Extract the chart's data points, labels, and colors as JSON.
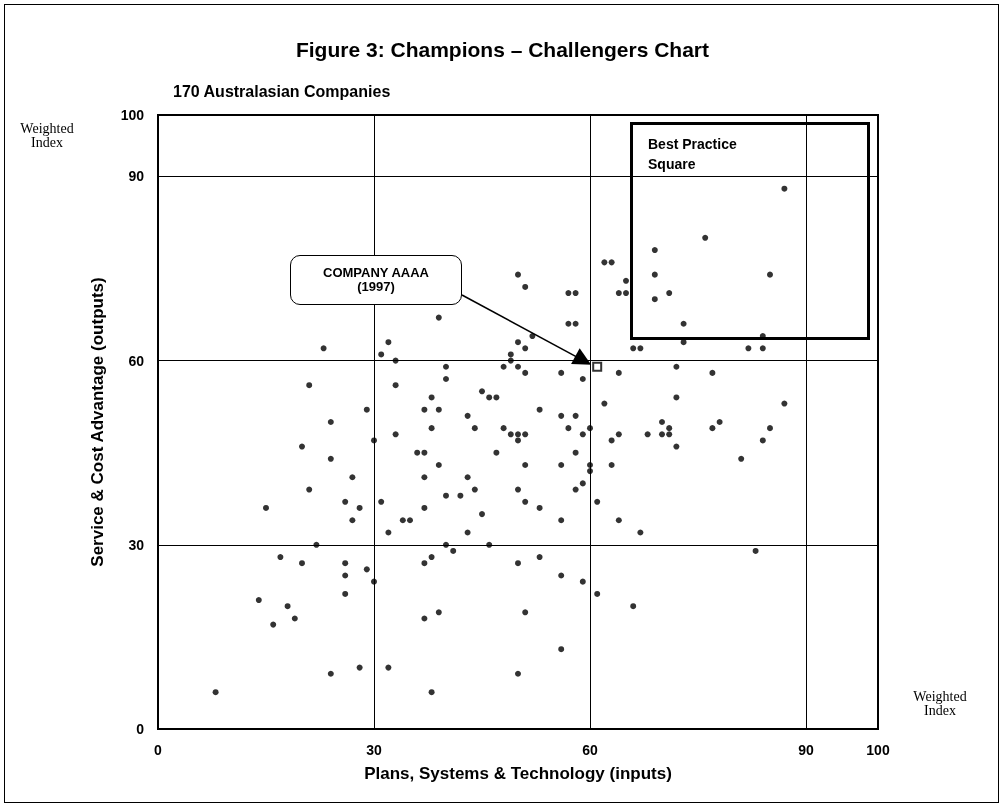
{
  "chart_data": {
    "type": "scatter",
    "title": "Figure 3: Champions – Challengers Chart",
    "subtitle": "170 Australasian Companies",
    "xlabel": "Plans, Systems & Technology (inputs)",
    "ylabel": "Service & Cost Advantage (outputs)",
    "xlim": [
      0,
      100
    ],
    "ylim": [
      0,
      100
    ],
    "xticks": [
      0,
      30,
      60,
      90,
      100
    ],
    "yticks": [
      0,
      30,
      60,
      90,
      100
    ],
    "grid": true,
    "marker": "circle",
    "annotations": [
      "Weighted Index",
      "Weighted Index",
      "Best Practice Square",
      "COMPANY AAAA (1997)"
    ],
    "series": [
      {
        "color": "#000000",
        "x": [
          23,
          32,
          31,
          33,
          21,
          33,
          29,
          24,
          50,
          51,
          57,
          58,
          57,
          58,
          62,
          63,
          65,
          64,
          65,
          39,
          50,
          52,
          51,
          49,
          49,
          48,
          50,
          51,
          40,
          40,
          56,
          59,
          64,
          62,
          45,
          46,
          47,
          38,
          37,
          39,
          43,
          53,
          56,
          58,
          87,
          76,
          69,
          69,
          85,
          71,
          69,
          73,
          73,
          84,
          66,
          67,
          82,
          84,
          72,
          77,
          72,
          87,
          20,
          24,
          30,
          27,
          21,
          26,
          28,
          31,
          27,
          15,
          32,
          22,
          17,
          20,
          26,
          26,
          29,
          30,
          26,
          14,
          18,
          19,
          16,
          24,
          28,
          32,
          8,
          38,
          44,
          48,
          57,
          60,
          33,
          49,
          50,
          51,
          59,
          64,
          50,
          63,
          36,
          37,
          47,
          58,
          39,
          51,
          56,
          60,
          63,
          60,
          37,
          43,
          59,
          44,
          50,
          58,
          40,
          42,
          51,
          61,
          37,
          53,
          45,
          34,
          35,
          56,
          64,
          43,
          40,
          46,
          41,
          38,
          53,
          37,
          50,
          56,
          59,
          61,
          39,
          51,
          37,
          56,
          50,
          38,
          70,
          78,
          71,
          77,
          85,
          68,
          70,
          71,
          72,
          84,
          81,
          67,
          83,
          66
        ],
        "values": [
          62,
          63,
          61,
          60,
          56,
          56,
          52,
          50,
          74,
          72,
          71,
          71,
          66,
          66,
          76,
          76,
          73,
          71,
          71,
          67,
          63,
          64,
          62,
          61,
          60,
          59,
          59,
          58,
          59,
          57,
          58,
          57,
          58,
          53,
          55,
          54,
          54,
          54,
          52,
          52,
          51,
          52,
          51,
          51,
          88,
          80,
          78,
          74,
          74,
          71,
          70,
          66,
          63,
          64,
          62,
          62,
          62,
          62,
          59,
          58,
          54,
          53,
          46,
          44,
          47,
          41,
          39,
          37,
          36,
          37,
          34,
          36,
          32,
          30,
          28,
          27,
          27,
          25,
          26,
          24,
          22,
          21,
          20,
          18,
          17,
          9,
          10,
          10,
          6,
          49,
          49,
          49,
          49,
          49,
          48,
          48,
          48,
          48,
          48,
          48,
          47,
          47,
          45,
          45,
          45,
          45,
          43,
          43,
          43,
          43,
          43,
          42,
          41,
          41,
          40,
          39,
          39,
          39,
          38,
          38,
          37,
          37,
          36,
          36,
          35,
          34,
          34,
          34,
          34,
          32,
          30,
          30,
          29,
          28,
          28,
          27,
          27,
          25,
          24,
          22,
          19,
          19,
          18,
          13,
          9,
          6,
          50,
          50,
          49,
          49,
          49,
          48,
          48,
          48,
          46,
          47,
          44,
          32,
          29,
          20
        ]
      },
      {
        "color": "#000000",
        "marker": "square",
        "x": [
          61
        ],
        "values": [
          59
        ]
      }
    ]
  }
}
